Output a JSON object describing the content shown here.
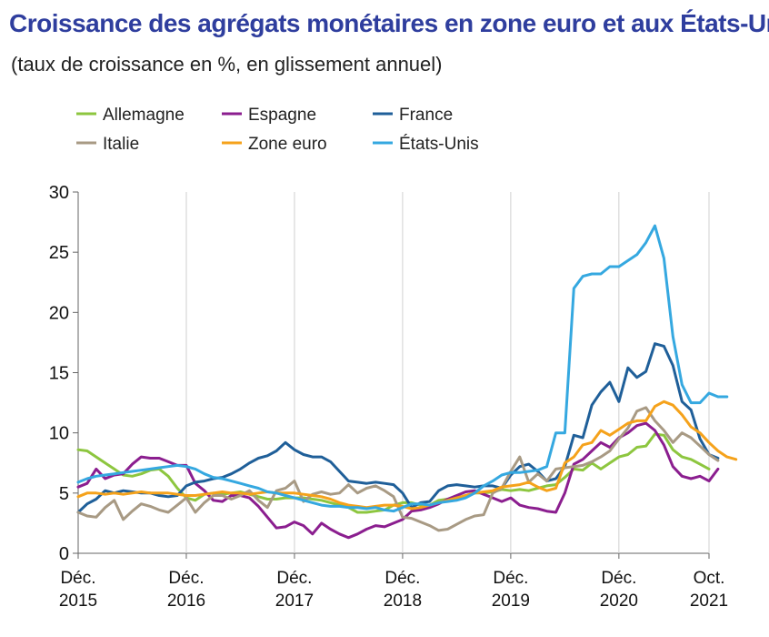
{
  "title": "Croissance des agrégats monétaires en zone euro et aux États-Unis",
  "subtitle": "(taux de croissance en %, en glissement annuel)",
  "chart_data": {
    "type": "line",
    "title": "Croissance des agrégats monétaires en zone euro et aux États-Unis",
    "subtitle": "(taux de croissance en %, en glissement annuel)",
    "ylim": [
      0,
      30
    ],
    "yticks": [
      0,
      5,
      10,
      15,
      20,
      25,
      30
    ],
    "xlim": [
      0,
      70
    ],
    "xticks": [
      {
        "pos": 0,
        "line1": "Déc.",
        "line2": "2015"
      },
      {
        "pos": 12,
        "line1": "Déc.",
        "line2": "2016"
      },
      {
        "pos": 24,
        "line1": "Déc.",
        "line2": "2017"
      },
      {
        "pos": 36,
        "line1": "Déc.",
        "line2": "2018"
      },
      {
        "pos": 48,
        "line1": "Déc.",
        "line2": "2019"
      },
      {
        "pos": 60,
        "line1": "Déc.",
        "line2": "2020"
      },
      {
        "pos": 70,
        "line1": "Oct.",
        "line2": "2021"
      }
    ],
    "legend_position": "top",
    "series": [
      {
        "name": "Allemagne",
        "color": "#8dc63f",
        "values": [
          8.6,
          8.5,
          8.0,
          7.5,
          7.0,
          6.5,
          6.4,
          6.6,
          6.9,
          7.0,
          6.4,
          5.4,
          4.6,
          4.4,
          4.9,
          5.0,
          4.9,
          5.0,
          5.1,
          4.9,
          4.7,
          4.5,
          4.5,
          4.6,
          4.6,
          4.6,
          4.5,
          4.4,
          4.2,
          4.0,
          3.8,
          3.4,
          3.4,
          3.5,
          3.6,
          4.0,
          4.2,
          4.2,
          4.0,
          4.0,
          4.4,
          4.5,
          4.6,
          4.8,
          5.0,
          5.0,
          5.1,
          5.3,
          5.2,
          5.3,
          5.2,
          5.4,
          5.6,
          5.7,
          6.3,
          7.0,
          6.9,
          7.5,
          7.0,
          7.5,
          8.0,
          8.2,
          8.8,
          8.9,
          9.9,
          9.8,
          8.6,
          8.0,
          7.8,
          7.4,
          7.0
        ]
      },
      {
        "name": "Espagne",
        "color": "#8b1e8f",
        "values": [
          5.5,
          5.8,
          7.0,
          6.2,
          6.5,
          6.6,
          7.4,
          8.0,
          7.9,
          7.9,
          7.6,
          7.3,
          7.3,
          5.8,
          5.2,
          4.4,
          4.3,
          4.8,
          4.8,
          4.6,
          3.9,
          3.0,
          2.1,
          2.2,
          2.6,
          2.3,
          1.6,
          2.5,
          2.0,
          1.6,
          1.3,
          1.6,
          2.0,
          2.3,
          2.2,
          2.5,
          2.8,
          3.5,
          3.6,
          3.8,
          4.1,
          4.5,
          4.8,
          5.1,
          5.2,
          4.9,
          4.6,
          4.3,
          4.6,
          4.0,
          3.8,
          3.7,
          3.5,
          3.4,
          5.0,
          7.4,
          7.8,
          8.5,
          9.2,
          8.8,
          9.6,
          10.0,
          10.6,
          10.8,
          10.2,
          9.0,
          7.2,
          6.4,
          6.2,
          6.4,
          6.0,
          7.0
        ]
      },
      {
        "name": "France",
        "color": "#1f5f99",
        "values": [
          3.4,
          4.1,
          4.5,
          5.2,
          5.0,
          5.2,
          5.1,
          5.0,
          5.0,
          4.8,
          4.7,
          4.8,
          5.6,
          5.9,
          6.0,
          6.2,
          6.3,
          6.6,
          7.0,
          7.5,
          7.9,
          8.1,
          8.5,
          9.2,
          8.6,
          8.2,
          8.0,
          8.0,
          7.6,
          6.8,
          6.0,
          5.9,
          5.8,
          5.9,
          5.8,
          5.7,
          5.0,
          3.8,
          4.2,
          4.3,
          5.2,
          5.6,
          5.7,
          5.6,
          5.5,
          5.6,
          5.6,
          5.4,
          6.5,
          7.2,
          7.4,
          6.8,
          6.0,
          6.2,
          7.2,
          9.8,
          9.6,
          12.3,
          13.4,
          14.2,
          12.6,
          15.4,
          14.6,
          15.1,
          17.4,
          17.2,
          15.6,
          12.6,
          11.9,
          9.5,
          8.2,
          7.9
        ]
      },
      {
        "name": "Italie",
        "color": "#a89a84",
        "values": [
          3.4,
          3.1,
          3.0,
          3.8,
          4.4,
          2.8,
          3.5,
          4.1,
          3.9,
          3.6,
          3.4,
          4.0,
          4.6,
          3.4,
          4.2,
          4.8,
          4.8,
          4.5,
          4.8,
          5.2,
          4.4,
          3.8,
          5.2,
          5.4,
          6.0,
          4.3,
          4.9,
          5.1,
          4.9,
          5.0,
          5.7,
          5.0,
          5.4,
          5.6,
          5.2,
          4.7,
          3.0,
          2.9,
          2.6,
          2.3,
          1.9,
          2.0,
          2.4,
          2.8,
          3.1,
          3.2,
          5.0,
          5.4,
          6.8,
          8.0,
          5.9,
          6.6,
          6.0,
          7.0,
          7.1,
          7.2,
          7.3,
          7.6,
          8.0,
          8.5,
          9.5,
          10.4,
          11.8,
          12.1,
          11.0,
          10.2,
          9.2,
          10.0,
          9.6,
          8.9,
          8.2,
          7.7
        ]
      },
      {
        "name": "Zone euro",
        "color": "#f5a21b",
        "values": [
          4.7,
          5.0,
          5.0,
          4.9,
          5.0,
          4.9,
          5.0,
          5.1,
          5.0,
          5.0,
          5.0,
          4.9,
          4.8,
          4.8,
          4.9,
          5.0,
          5.1,
          5.0,
          5.0,
          4.9,
          5.0,
          5.1,
          5.0,
          5.0,
          5.0,
          4.9,
          4.8,
          4.7,
          4.5,
          4.2,
          4.0,
          3.9,
          3.8,
          3.9,
          4.0,
          4.0,
          3.9,
          3.7,
          3.8,
          4.0,
          4.2,
          4.4,
          4.6,
          4.8,
          5.0,
          5.1,
          5.2,
          5.5,
          5.6,
          5.7,
          5.9,
          5.5,
          5.2,
          5.4,
          7.5,
          8.0,
          9.0,
          9.2,
          10.2,
          9.8,
          10.3,
          10.8,
          11.0,
          11.0,
          12.2,
          12.6,
          12.3,
          11.5,
          10.5,
          10.0,
          9.2,
          8.5,
          8.0,
          7.8
        ]
      },
      {
        "name": "États-Unis",
        "color": "#35a8e0",
        "values": [
          5.9,
          6.2,
          6.4,
          6.5,
          6.6,
          6.7,
          6.8,
          6.9,
          7.0,
          7.1,
          7.2,
          7.3,
          7.2,
          7.0,
          6.6,
          6.3,
          6.2,
          6.0,
          5.8,
          5.6,
          5.4,
          5.1,
          5.0,
          4.8,
          4.6,
          4.4,
          4.2,
          4.0,
          3.9,
          3.9,
          3.8,
          3.8,
          3.7,
          3.8,
          3.6,
          3.5,
          3.8,
          4.1,
          4.1,
          4.0,
          4.2,
          4.3,
          4.4,
          4.6,
          5.0,
          5.6,
          6.0,
          6.5,
          6.7,
          6.7,
          6.8,
          6.9,
          7.2,
          10.0,
          10.0,
          22.0,
          23.0,
          23.2,
          23.2,
          23.8,
          23.8,
          24.3,
          24.8,
          25.8,
          27.2,
          24.5,
          18.0,
          14.0,
          12.5,
          12.5,
          13.3,
          13.0,
          13.0
        ]
      }
    ]
  }
}
